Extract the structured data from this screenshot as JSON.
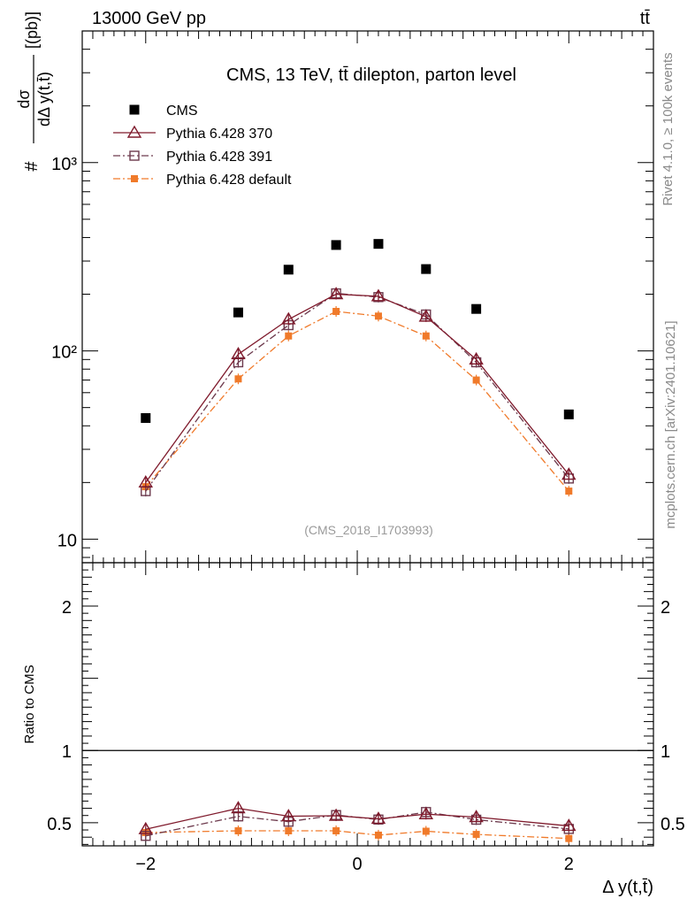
{
  "header": {
    "left_label": "13000 GeV pp",
    "right_label": "tt̄"
  },
  "side_labels": {
    "rivet": "Rivet 4.1.0, ≥ 100k events",
    "mcplots": "mcplots.cern.ch [arXiv:2401.10621]"
  },
  "chart_data": [
    {
      "type": "scatter",
      "panel": "main",
      "title": "CMS, 13 TeV, tt̄ dilepton, parton level",
      "watermark": "(CMS_2018_I1703993)",
      "ylabel": {
        "hash": "#",
        "numerator": "dσ",
        "denominator": "dΔ y(t,t̄)",
        "unit": "[(pb)]"
      },
      "yscale": "log",
      "xlim": [
        -2.6,
        2.8
      ],
      "ylim": [
        7.5,
        5000
      ],
      "x_ticks": [
        -2,
        0,
        2
      ],
      "y_ticks": [
        {
          "value": 10,
          "label": "10"
        },
        {
          "value": 100,
          "label": "10²"
        },
        {
          "value": 1000,
          "label": "10³"
        }
      ],
      "legend_position": "top-left",
      "x": [
        -2.0,
        -1.125,
        -0.65,
        -0.2,
        0.2,
        0.65,
        1.125,
        2.0
      ],
      "series": [
        {
          "name": "CMS",
          "style": "data",
          "color": "#000000",
          "values": [
            44,
            160,
            270,
            365,
            370,
            272,
            167,
            46
          ]
        },
        {
          "name": "Pythia 6.428 370",
          "style": "solid-triangle",
          "color": "#7f1a2c",
          "values": [
            20,
            96,
            147,
            200,
            195,
            152,
            90,
            22
          ]
        },
        {
          "name": "Pythia 6.428 391",
          "style": "dashdot-square",
          "color": "#6d3a4d",
          "values": [
            18,
            87,
            137,
            202,
            193,
            156,
            87,
            21
          ]
        },
        {
          "name": "Pythia 6.428 default",
          "style": "dashdot-filled",
          "color": "#f07a2a",
          "values": [
            19,
            71,
            120,
            162,
            153,
            120,
            70,
            18
          ]
        }
      ]
    },
    {
      "type": "line",
      "panel": "ratio",
      "ylabel": "Ratio to CMS",
      "xlabel": "Δ y(t,t̄)",
      "xlim": [
        -2.6,
        2.8
      ],
      "ylim": [
        0.34,
        2.3
      ],
      "x_ticks": [
        -2,
        0,
        2
      ],
      "x_tick_labels": [
        "−2",
        "0",
        "2"
      ],
      "y_ticks": [
        {
          "value": 0.5,
          "label": "0.5"
        },
        {
          "value": 1,
          "label": "1"
        },
        {
          "value": 2,
          "label": "2"
        }
      ],
      "reference_line": 1,
      "x": [
        -2.0,
        -1.125,
        -0.65,
        -0.2,
        0.2,
        0.65,
        1.125,
        2.0
      ],
      "series": [
        {
          "name": "Pythia 6.428 370",
          "style": "solid-triangle",
          "color": "#7f1a2c",
          "values": [
            0.455,
            0.6,
            0.545,
            0.548,
            0.527,
            0.559,
            0.539,
            0.478
          ]
        },
        {
          "name": "Pythia 6.428 391",
          "style": "dashdot-square",
          "color": "#6d3a4d",
          "values": [
            0.409,
            0.544,
            0.507,
            0.553,
            0.522,
            0.574,
            0.521,
            0.457
          ]
        },
        {
          "name": "Pythia 6.428 default",
          "style": "dashdot-filled",
          "color": "#f07a2a",
          "values": [
            0.432,
            0.444,
            0.444,
            0.444,
            0.414,
            0.441,
            0.419,
            0.391
          ]
        }
      ]
    }
  ]
}
